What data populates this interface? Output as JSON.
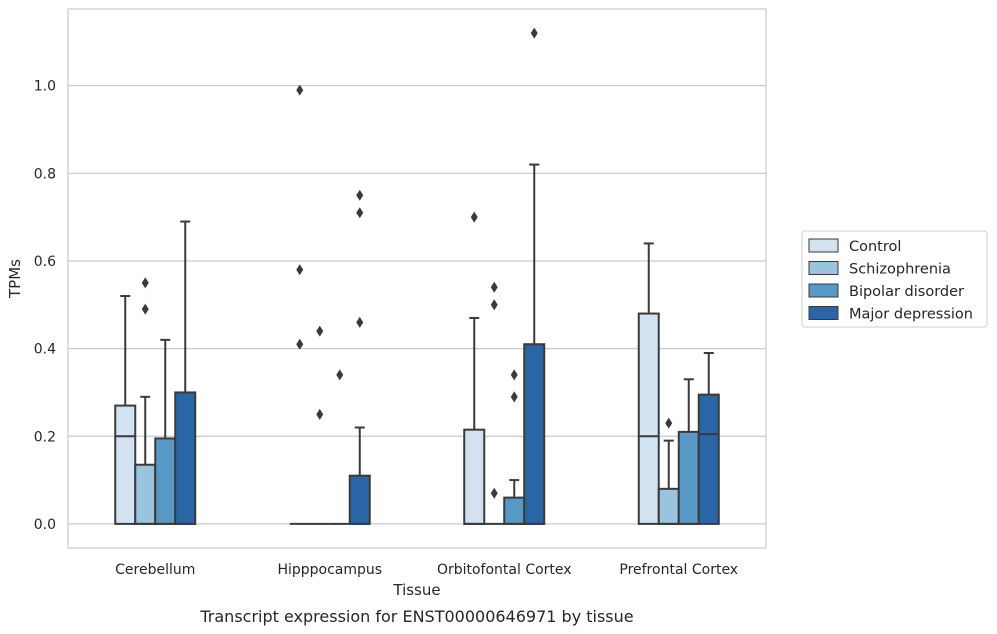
{
  "chart_data": {
    "type": "box",
    "caption": "Transcript expression for ENST00000646971 by tissue",
    "xlabel": "Tissue",
    "ylabel": "TPMs",
    "ylim": [
      -0.055,
      1.175
    ],
    "yticks": [
      "0.0",
      "0.2",
      "0.4",
      "0.6",
      "0.8",
      "1.0"
    ],
    "grid": "horizontal",
    "legend_position": "right",
    "categories": [
      "Cerebellum",
      "Hipppocampus",
      "Orbitofontal Cortex",
      "Prefrontal Cortex"
    ],
    "series": [
      {
        "name": "Control",
        "color": "#d2e2f1",
        "boxes": [
          {
            "q1": 0,
            "median": 0.2,
            "q3": 0.27,
            "whisker_low": 0,
            "whisker_high": 0.52,
            "outliers": []
          },
          {
            "q1": 0,
            "median": 0,
            "q3": 0,
            "whisker_low": 0,
            "whisker_high": 0,
            "outliers": [
              0.41,
              0.58,
              0.99
            ]
          },
          {
            "q1": 0,
            "median": 0,
            "q3": 0.215,
            "whisker_low": 0,
            "whisker_high": 0.47,
            "outliers": [
              0.7
            ]
          },
          {
            "q1": 0,
            "median": 0.2,
            "q3": 0.48,
            "whisker_low": 0,
            "whisker_high": 0.64,
            "outliers": []
          }
        ]
      },
      {
        "name": "Schizophrenia",
        "color": "#9ac3de",
        "boxes": [
          {
            "q1": 0,
            "median": 0,
            "q3": 0.135,
            "whisker_low": 0,
            "whisker_high": 0.29,
            "outliers": [
              0.49,
              0.55
            ]
          },
          {
            "q1": 0,
            "median": 0,
            "q3": 0,
            "whisker_low": 0,
            "whisker_high": 0,
            "outliers": [
              0.25,
              0.44
            ]
          },
          {
            "q1": 0,
            "median": 0,
            "q3": 0,
            "whisker_low": 0,
            "whisker_high": 0,
            "outliers": [
              0.07,
              0.5,
              0.54
            ]
          },
          {
            "q1": 0,
            "median": 0,
            "q3": 0.08,
            "whisker_low": 0,
            "whisker_high": 0.19,
            "outliers": [
              0.23
            ]
          }
        ]
      },
      {
        "name": "Bipolar disorder",
        "color": "#5898c5",
        "boxes": [
          {
            "q1": 0,
            "median": 0,
            "q3": 0.195,
            "whisker_low": 0,
            "whisker_high": 0.42,
            "outliers": []
          },
          {
            "q1": 0,
            "median": 0,
            "q3": 0,
            "whisker_low": 0,
            "whisker_high": 0,
            "outliers": [
              0.34
            ]
          },
          {
            "q1": 0,
            "median": 0,
            "q3": 0.06,
            "whisker_low": 0,
            "whisker_high": 0.1,
            "outliers": [
              0.29,
              0.34
            ]
          },
          {
            "q1": 0,
            "median": 0,
            "q3": 0.21,
            "whisker_low": 0,
            "whisker_high": 0.33,
            "outliers": []
          }
        ]
      },
      {
        "name": "Major depression",
        "color": "#2a66a5",
        "boxes": [
          {
            "q1": 0,
            "median": 0,
            "q3": 0.3,
            "whisker_low": 0,
            "whisker_high": 0.69,
            "outliers": []
          },
          {
            "q1": 0,
            "median": 0,
            "q3": 0.11,
            "whisker_low": 0,
            "whisker_high": 0.22,
            "outliers": [
              0.46,
              0.71,
              0.75
            ]
          },
          {
            "q1": 0,
            "median": 0,
            "q3": 0.41,
            "whisker_low": 0,
            "whisker_high": 0.82,
            "outliers": [
              1.12
            ]
          },
          {
            "q1": 0,
            "median": 0.205,
            "q3": 0.295,
            "whisker_low": 0,
            "whisker_high": 0.39,
            "outliers": []
          }
        ]
      }
    ]
  }
}
